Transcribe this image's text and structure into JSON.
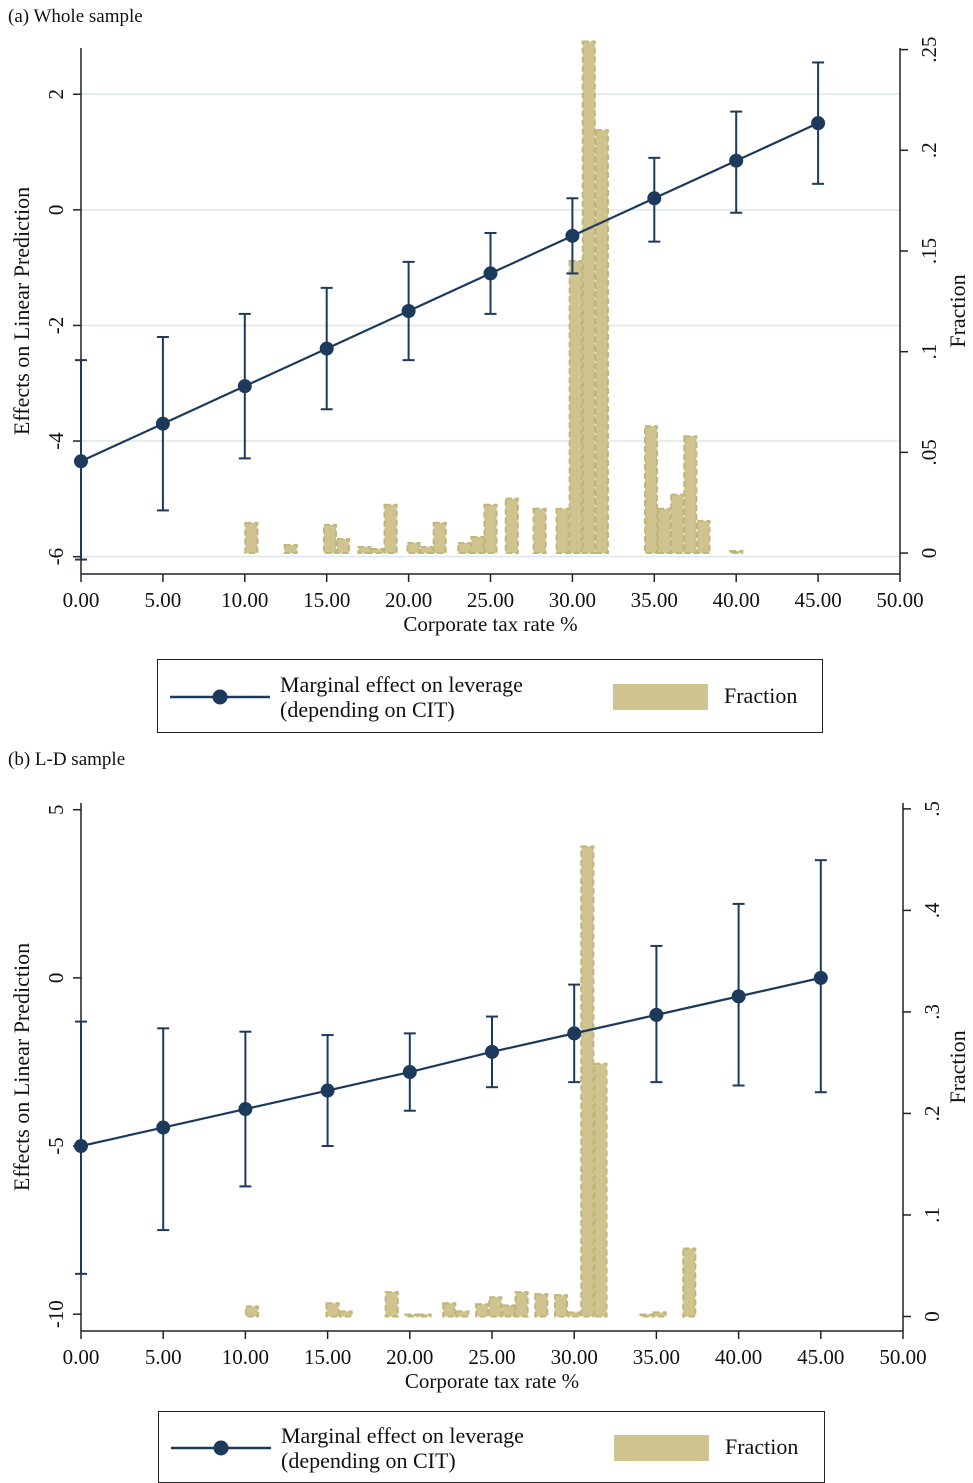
{
  "colors": {
    "line": "#1b3a5c",
    "bar_fill": "#cfc48f",
    "bar_edge": "#c2b57a",
    "grid": "#dce8ee",
    "axis": "#222222"
  },
  "chart_data": [
    {
      "panel_label": "(a) Whole sample",
      "type": "line",
      "xlabel": "Corporate tax rate %",
      "ylabel": "Effects on Linear Prediction",
      "y2label": "Fraction",
      "xlim": [
        0,
        50
      ],
      "ylim": [
        -6.3,
        2.8
      ],
      "y2lim": [
        -0.0104,
        0.2508
      ],
      "x_ticks": [
        "0.00",
        "5.00",
        "10.00",
        "15.00",
        "20.00",
        "25.00",
        "30.00",
        "35.00",
        "40.00",
        "45.00",
        "50.00"
      ],
      "x_tick_values": [
        0,
        5,
        10,
        15,
        20,
        25,
        30,
        35,
        40,
        45,
        50
      ],
      "y_ticks": [
        "-6",
        "-4",
        "-2",
        "0",
        "2"
      ],
      "y_tick_values": [
        -6,
        -4,
        -2,
        0,
        2
      ],
      "y2_ticks": [
        "0",
        ".05",
        ".1",
        ".15",
        ".2",
        ".25"
      ],
      "y2_tick_values": [
        0,
        0.05,
        0.1,
        0.15,
        0.2,
        0.25
      ],
      "grid": true,
      "series": [
        {
          "name": "Marginal effect on leverage (depending on CIT)",
          "type": "line_with_ci",
          "x": [
            0,
            5,
            10,
            15,
            20,
            25,
            30,
            35,
            40,
            45
          ],
          "y": [
            -4.35,
            -3.7,
            -3.05,
            -2.4,
            -1.75,
            -1.1,
            -0.45,
            0.2,
            0.85,
            1.5
          ],
          "ci_low": [
            -6.05,
            -5.2,
            -4.3,
            -3.45,
            -2.6,
            -1.8,
            -1.1,
            -0.55,
            -0.05,
            0.45
          ],
          "ci_high": [
            -2.6,
            -2.2,
            -1.8,
            -1.35,
            -0.9,
            -0.4,
            0.2,
            0.9,
            1.7,
            2.55
          ]
        },
        {
          "name": "Fraction",
          "type": "bar",
          "axis": "right",
          "bins": [
            {
              "x0": 10.0,
              "x1": 10.8,
              "v": 0.015
            },
            {
              "x0": 12.4,
              "x1": 13.2,
              "v": 0.004
            },
            {
              "x0": 14.8,
              "x1": 15.6,
              "v": 0.014
            },
            {
              "x0": 15.6,
              "x1": 16.4,
              "v": 0.007
            },
            {
              "x0": 16.9,
              "x1": 17.7,
              "v": 0.003
            },
            {
              "x0": 17.7,
              "x1": 18.5,
              "v": 0.002
            },
            {
              "x0": 18.5,
              "x1": 19.3,
              "v": 0.024
            },
            {
              "x0": 19.9,
              "x1": 20.7,
              "v": 0.005
            },
            {
              "x0": 20.7,
              "x1": 21.5,
              "v": 0.003
            },
            {
              "x0": 21.5,
              "x1": 22.3,
              "v": 0.015
            },
            {
              "x0": 23.0,
              "x1": 23.8,
              "v": 0.005
            },
            {
              "x0": 23.8,
              "x1": 24.6,
              "v": 0.008
            },
            {
              "x0": 24.6,
              "x1": 25.4,
              "v": 0.024
            },
            {
              "x0": 25.9,
              "x1": 26.7,
              "v": 0.027
            },
            {
              "x0": 27.6,
              "x1": 28.4,
              "v": 0.022
            },
            {
              "x0": 29.0,
              "x1": 29.8,
              "v": 0.022
            },
            {
              "x0": 29.8,
              "x1": 30.6,
              "v": 0.145
            },
            {
              "x0": 30.6,
              "x1": 31.4,
              "v": 0.254
            },
            {
              "x0": 31.4,
              "x1": 32.2,
              "v": 0.21
            },
            {
              "x0": 34.4,
              "x1": 35.2,
              "v": 0.063
            },
            {
              "x0": 35.2,
              "x1": 36.0,
              "v": 0.022
            },
            {
              "x0": 36.0,
              "x1": 36.8,
              "v": 0.029
            },
            {
              "x0": 36.8,
              "x1": 37.6,
              "v": 0.058
            },
            {
              "x0": 37.6,
              "x1": 38.4,
              "v": 0.016
            },
            {
              "x0": 39.6,
              "x1": 40.4,
              "v": 0.001
            }
          ]
        }
      ],
      "legend": {
        "line_label_1": "Marginal effect on leverage",
        "line_label_2": "(depending on CIT)",
        "bar_label": "Fraction"
      }
    },
    {
      "panel_label": "(b) L-D sample",
      "type": "line",
      "xlabel": "Corporate tax rate %",
      "ylabel": "Effects on Linear Prediction",
      "y2label": "Fraction",
      "xlim": [
        0,
        50
      ],
      "ylim": [
        -10.5,
        5.2
      ],
      "y2lim": [
        -0.0143,
        0.5058
      ],
      "x_ticks": [
        "0.00",
        "5.00",
        "10.00",
        "15.00",
        "20.00",
        "25.00",
        "30.00",
        "35.00",
        "40.00",
        "45.00",
        "50.00"
      ],
      "x_tick_values": [
        0,
        5,
        10,
        15,
        20,
        25,
        30,
        35,
        40,
        45,
        50
      ],
      "y_ticks": [
        "-10",
        "-5",
        "0",
        "5"
      ],
      "y_tick_values": [
        -10,
        -5,
        0,
        5
      ],
      "y2_ticks": [
        "0",
        ".1",
        ".2",
        ".3",
        ".4",
        ".5"
      ],
      "y2_tick_values": [
        0,
        0.1,
        0.2,
        0.3,
        0.4,
        0.5
      ],
      "grid": false,
      "series": [
        {
          "name": "Marginal effect on leverage (depending on CIT)",
          "type": "line_with_ci",
          "x": [
            0,
            5,
            10,
            15,
            20,
            25,
            30,
            35,
            40,
            45
          ],
          "y": [
            -5.0,
            -4.45,
            -3.9,
            -3.35,
            -2.8,
            -2.2,
            -1.65,
            -1.1,
            -0.55,
            0.0
          ],
          "ci_low": [
            -8.8,
            -7.5,
            -6.2,
            -5.0,
            -3.95,
            -3.25,
            -3.1,
            -3.1,
            -3.2,
            -3.4
          ],
          "ci_high": [
            -1.3,
            -1.5,
            -1.6,
            -1.7,
            -1.65,
            -1.15,
            -0.2,
            0.95,
            2.2,
            3.5
          ]
        },
        {
          "name": "Fraction",
          "type": "bar",
          "axis": "right",
          "bins": [
            {
              "x0": 10.0,
              "x1": 10.8,
              "v": 0.01
            },
            {
              "x0": 14.9,
              "x1": 15.7,
              "v": 0.013
            },
            {
              "x0": 15.7,
              "x1": 16.5,
              "v": 0.005
            },
            {
              "x0": 18.5,
              "x1": 19.3,
              "v": 0.024
            },
            {
              "x0": 19.7,
              "x1": 20.5,
              "v": 0.002
            },
            {
              "x0": 20.5,
              "x1": 21.3,
              "v": 0.002
            },
            {
              "x0": 22.0,
              "x1": 22.8,
              "v": 0.013
            },
            {
              "x0": 22.8,
              "x1": 23.6,
              "v": 0.005
            },
            {
              "x0": 24.0,
              "x1": 24.8,
              "v": 0.012
            },
            {
              "x0": 24.8,
              "x1": 25.6,
              "v": 0.019
            },
            {
              "x0": 25.6,
              "x1": 26.4,
              "v": 0.011
            },
            {
              "x0": 26.4,
              "x1": 27.2,
              "v": 0.024
            },
            {
              "x0": 27.6,
              "x1": 28.4,
              "v": 0.022
            },
            {
              "x0": 28.8,
              "x1": 29.6,
              "v": 0.021
            },
            {
              "x0": 29.6,
              "x1": 30.4,
              "v": 0.004
            },
            {
              "x0": 30.4,
              "x1": 31.2,
              "v": 0.463
            },
            {
              "x0": 31.2,
              "x1": 32.0,
              "v": 0.249
            },
            {
              "x0": 34.0,
              "x1": 34.8,
              "v": 0.002
            },
            {
              "x0": 34.8,
              "x1": 35.6,
              "v": 0.004
            },
            {
              "x0": 36.6,
              "x1": 37.4,
              "v": 0.067
            }
          ]
        }
      ],
      "legend": {
        "line_label_1": "Marginal effect on leverage",
        "line_label_2": "(depending on CIT)",
        "bar_label": "Fraction"
      }
    }
  ]
}
